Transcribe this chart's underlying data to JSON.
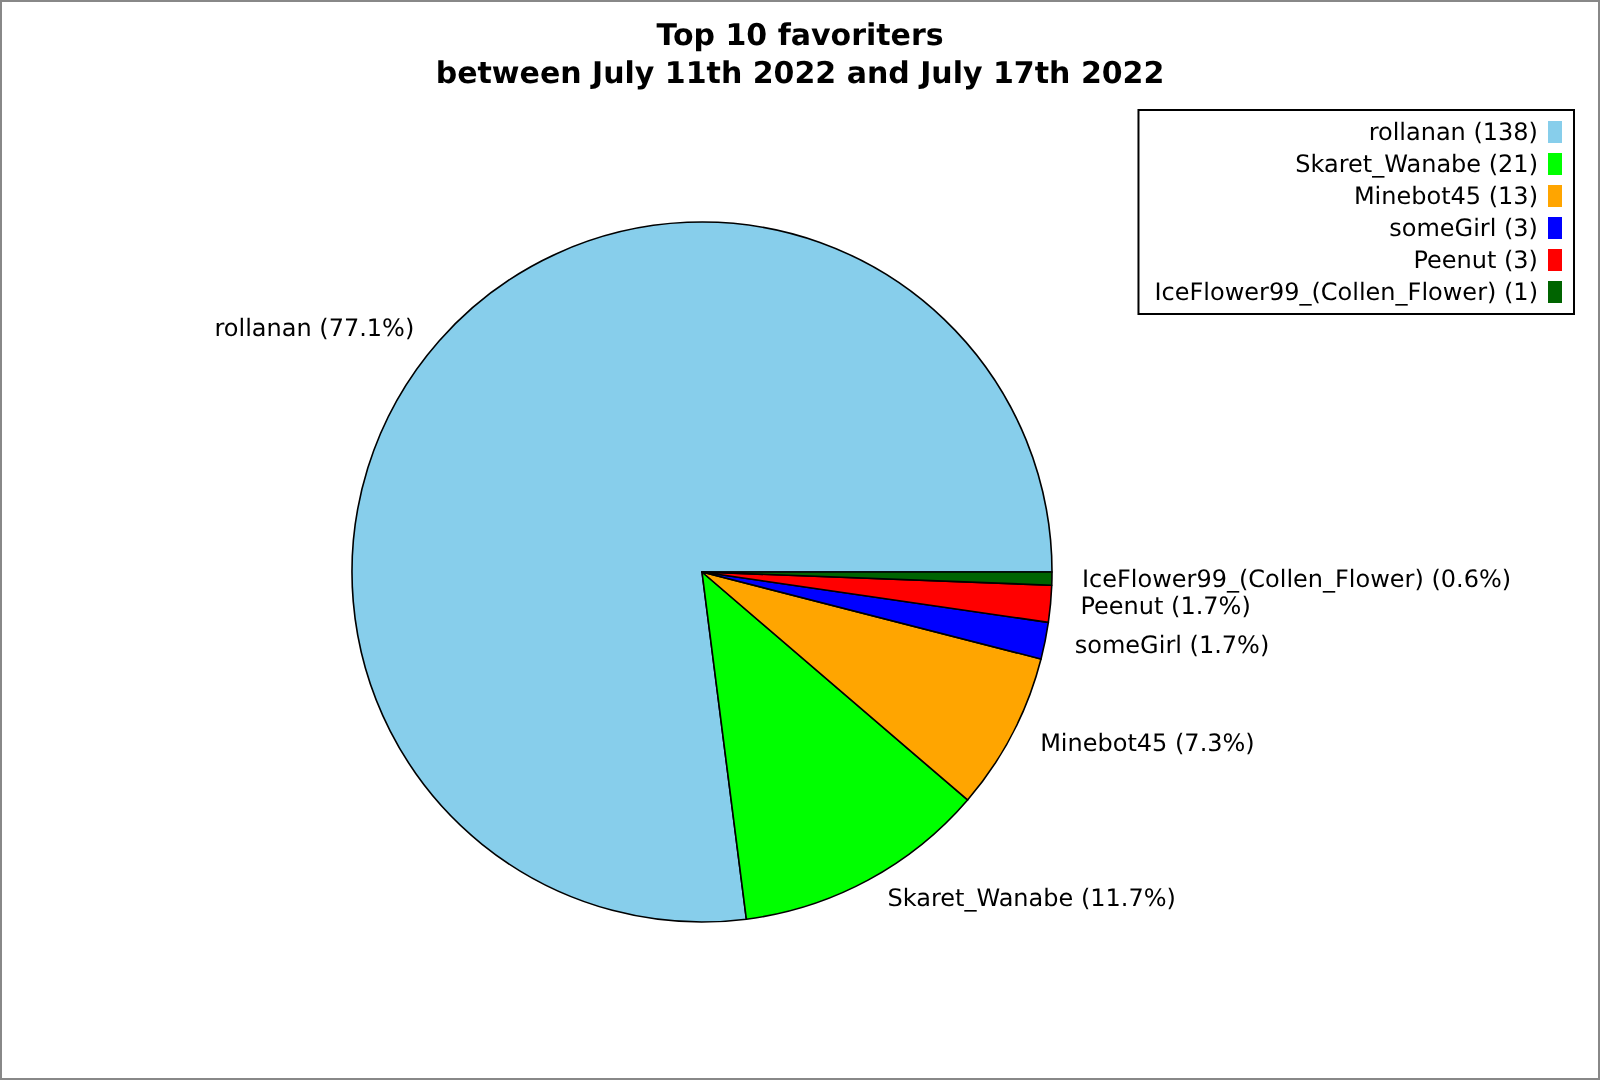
{
  "chart_data": {
    "type": "pie",
    "title": "Top 10 favoriters\nbetween July 11th 2022 and July 17th 2022",
    "categories": [
      "rollanan (138)",
      "Skaret_Wanabe (21)",
      "Minebot45 (13)",
      "someGirl (3)",
      "Peenut (3)",
      "IceFlower99_(Collen_Flower) (1)"
    ],
    "values": [
      77.1,
      11.7,
      7.3,
      1.7,
      1.7,
      0.6
    ],
    "value_labels": [
      "rollanan (77.1%)",
      "Skaret_Wanabe (11.7%)",
      "Minebot45 (7.3%)",
      "someGirl (1.7%)",
      "Peenut (1.7%)",
      "IceFlower99_(Collen_Flower) (0.6%)"
    ],
    "colors": [
      "#87ceeb",
      "#00ff00",
      "#ffa500",
      "#0000ff",
      "#ff0000",
      "#006400"
    ],
    "legend": "top right"
  }
}
